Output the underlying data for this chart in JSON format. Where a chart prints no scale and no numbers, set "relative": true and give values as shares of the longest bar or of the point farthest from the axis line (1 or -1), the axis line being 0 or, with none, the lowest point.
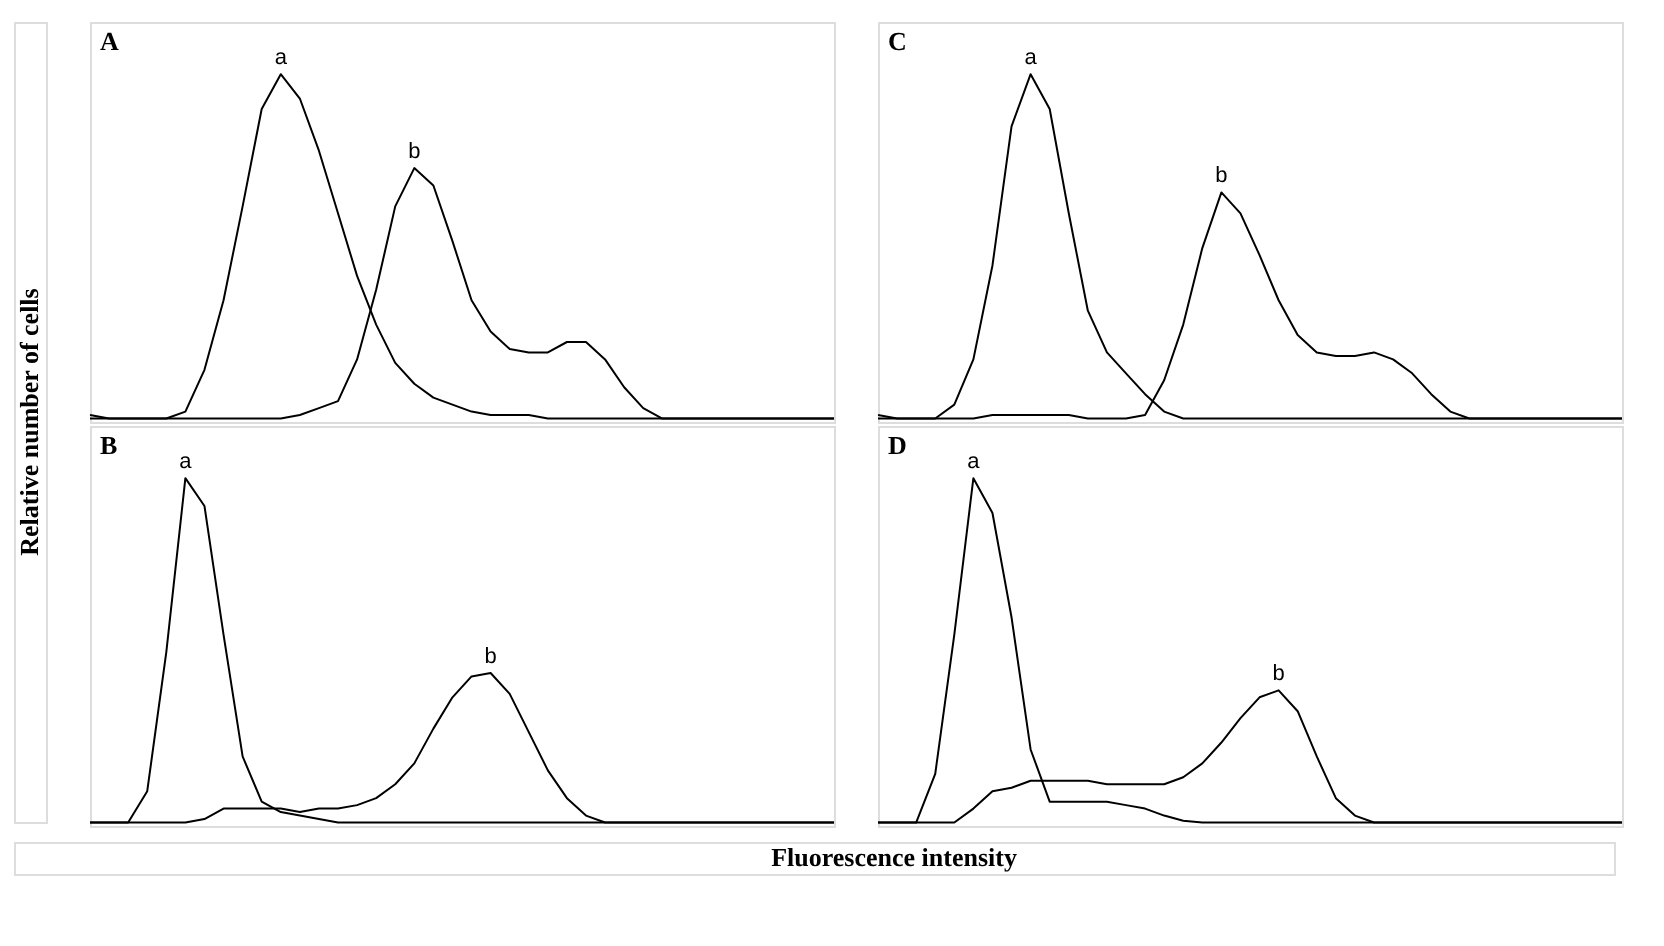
{
  "chart_data": [
    {
      "type": "line",
      "title": "A",
      "ylabel": "Relative number of cells",
      "relative": true,
      "categories": [
        null,
        null,
        null,
        null,
        null,
        null,
        null,
        null,
        null,
        null,
        null,
        null,
        null,
        null,
        null,
        null,
        null,
        null,
        null,
        null,
        null,
        null,
        null,
        null,
        null,
        null,
        null,
        null,
        null,
        null,
        null,
        null,
        null,
        null,
        null,
        null,
        null,
        null,
        null,
        null
      ],
      "series": [
        {
          "name": "a",
          "color": "#000000",
          "values": [
            0.02,
            0.01,
            0.01,
            0.01,
            0.01,
            0.03,
            0.15,
            0.35,
            0.62,
            0.9,
            1.0,
            0.93,
            0.78,
            0.6,
            0.42,
            0.28,
            0.17,
            0.11,
            0.07,
            0.05,
            0.03,
            0.02,
            0.02,
            0.02,
            0.01,
            0.01,
            0.01,
            0.01,
            0.01,
            0.01,
            0.01,
            0.01,
            0.01,
            0.01,
            0.01,
            0.01,
            0.01,
            0.01,
            0.01,
            0.01
          ]
        },
        {
          "name": "b",
          "color": "#000000",
          "values": [
            0.01,
            0.01,
            0.01,
            0.01,
            0.01,
            0.01,
            0.01,
            0.01,
            0.01,
            0.01,
            0.01,
            0.02,
            0.04,
            0.06,
            0.18,
            0.38,
            0.62,
            0.73,
            0.68,
            0.52,
            0.35,
            0.26,
            0.21,
            0.2,
            0.2,
            0.23,
            0.23,
            0.18,
            0.1,
            0.04,
            0.01,
            0.01,
            0.01,
            0.01,
            0.01,
            0.01,
            0.01,
            0.01,
            0.01,
            0.01
          ]
        }
      ]
    },
    {
      "type": "line",
      "title": "B",
      "xlabel": "Fluorescence intensity",
      "relative": true,
      "categories": [
        null,
        null,
        null,
        null,
        null,
        null,
        null,
        null,
        null,
        null,
        null,
        null,
        null,
        null,
        null,
        null,
        null,
        null,
        null,
        null,
        null,
        null,
        null,
        null,
        null,
        null,
        null,
        null,
        null,
        null,
        null,
        null,
        null,
        null,
        null,
        null,
        null,
        null,
        null,
        null
      ],
      "series": [
        {
          "name": "a",
          "color": "#000000",
          "values": [
            0.01,
            0.01,
            0.01,
            0.1,
            0.5,
            1.0,
            0.92,
            0.55,
            0.2,
            0.07,
            0.04,
            0.03,
            0.02,
            0.01,
            0.01,
            0.01,
            0.01,
            0.01,
            0.01,
            0.01,
            0.01,
            0.01,
            0.01,
            0.01,
            0.01,
            0.01,
            0.01,
            0.01,
            0.01,
            0.01,
            0.01,
            0.01,
            0.01,
            0.01,
            0.01,
            0.01,
            0.01,
            0.01,
            0.01,
            0.01
          ]
        },
        {
          "name": "b",
          "color": "#000000",
          "values": [
            0.01,
            0.01,
            0.01,
            0.01,
            0.01,
            0.01,
            0.02,
            0.05,
            0.05,
            0.05,
            0.05,
            0.04,
            0.05,
            0.05,
            0.06,
            0.08,
            0.12,
            0.18,
            0.28,
            0.37,
            0.43,
            0.44,
            0.38,
            0.27,
            0.16,
            0.08,
            0.03,
            0.01,
            0.01,
            0.01,
            0.01,
            0.01,
            0.01,
            0.01,
            0.01,
            0.01,
            0.01,
            0.01,
            0.01,
            0.01
          ]
        }
      ]
    },
    {
      "type": "line",
      "title": "C",
      "relative": true,
      "categories": [
        null,
        null,
        null,
        null,
        null,
        null,
        null,
        null,
        null,
        null,
        null,
        null,
        null,
        null,
        null,
        null,
        null,
        null,
        null,
        null,
        null,
        null,
        null,
        null,
        null,
        null,
        null,
        null,
        null,
        null,
        null,
        null,
        null,
        null,
        null,
        null,
        null,
        null,
        null,
        null
      ],
      "series": [
        {
          "name": "a",
          "color": "#000000",
          "values": [
            0.02,
            0.01,
            0.01,
            0.01,
            0.05,
            0.18,
            0.45,
            0.85,
            1.0,
            0.9,
            0.6,
            0.32,
            0.2,
            0.14,
            0.08,
            0.03,
            0.01,
            0.01,
            0.01,
            0.01,
            0.01,
            0.01,
            0.01,
            0.01,
            0.01,
            0.01,
            0.01,
            0.01,
            0.01,
            0.01,
            0.01,
            0.01,
            0.01,
            0.01,
            0.01,
            0.01,
            0.01,
            0.01,
            0.01,
            0.01
          ]
        },
        {
          "name": "b",
          "color": "#000000",
          "values": [
            0.01,
            0.01,
            0.01,
            0.01,
            0.01,
            0.01,
            0.02,
            0.02,
            0.02,
            0.02,
            0.02,
            0.01,
            0.01,
            0.01,
            0.02,
            0.12,
            0.28,
            0.5,
            0.66,
            0.6,
            0.48,
            0.35,
            0.25,
            0.2,
            0.19,
            0.19,
            0.2,
            0.18,
            0.14,
            0.08,
            0.03,
            0.01,
            0.01,
            0.01,
            0.01,
            0.01,
            0.01,
            0.01,
            0.01,
            0.01
          ]
        }
      ]
    },
    {
      "type": "line",
      "title": "D",
      "relative": true,
      "categories": [
        null,
        null,
        null,
        null,
        null,
        null,
        null,
        null,
        null,
        null,
        null,
        null,
        null,
        null,
        null,
        null,
        null,
        null,
        null,
        null,
        null,
        null,
        null,
        null,
        null,
        null,
        null,
        null,
        null,
        null,
        null,
        null,
        null,
        null,
        null,
        null,
        null,
        null,
        null,
        null
      ],
      "series": [
        {
          "name": "a",
          "color": "#000000",
          "values": [
            0.01,
            0.01,
            0.01,
            0.15,
            0.55,
            1.0,
            0.9,
            0.6,
            0.22,
            0.07,
            0.07,
            0.07,
            0.07,
            0.06,
            0.05,
            0.03,
            0.015,
            0.01,
            0.01,
            0.01,
            0.01,
            0.01,
            0.01,
            0.01,
            0.01,
            0.01,
            0.01,
            0.01,
            0.01,
            0.01,
            0.01,
            0.01,
            0.01,
            0.01,
            0.01,
            0.01,
            0.01,
            0.01,
            0.01,
            0.01
          ]
        },
        {
          "name": "b",
          "color": "#000000",
          "values": [
            0.01,
            0.01,
            0.01,
            0.01,
            0.01,
            0.05,
            0.1,
            0.11,
            0.13,
            0.13,
            0.13,
            0.13,
            0.12,
            0.12,
            0.12,
            0.12,
            0.14,
            0.18,
            0.24,
            0.31,
            0.37,
            0.39,
            0.33,
            0.2,
            0.08,
            0.03,
            0.01,
            0.01,
            0.01,
            0.01,
            0.01,
            0.01,
            0.01,
            0.01,
            0.01,
            0.01,
            0.01,
            0.01,
            0.01,
            0.01
          ]
        }
      ]
    }
  ]
}
